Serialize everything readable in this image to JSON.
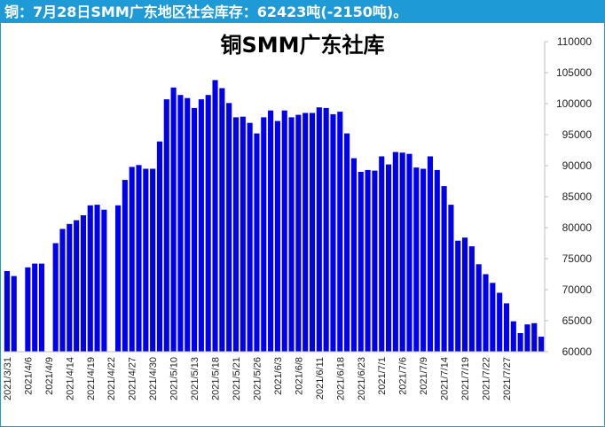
{
  "banner": {
    "text": "铜：7月28日SMM广东地区社会库存：62423吨(-2150吨)。"
  },
  "colors": {
    "banner": "#1e9bd7",
    "bar": "#0000ee"
  },
  "chart_data": {
    "type": "bar",
    "title": "铜SMM广东社库",
    "xlabel": "",
    "ylabel": "",
    "ylim": [
      60000,
      110000
    ],
    "yticks": [
      60000,
      65000,
      70000,
      75000,
      80000,
      85000,
      90000,
      95000,
      100000,
      105000,
      110000
    ],
    "grid": false,
    "legend": "none",
    "tick_labels": [
      "2021/3/31",
      "2021/4/6",
      "2021/4/9",
      "2021/4/14",
      "2021/4/19",
      "2021/4/22",
      "2021/4/27",
      "2021/4/30",
      "2021/5/10",
      "2021/5/13",
      "2021/5/18",
      "2021/5/21",
      "2021/5/26",
      "2021/6/3",
      "2021/6/8",
      "2021/6/11",
      "2021/6/18",
      "2021/6/23",
      "2021/7/1",
      "2021/7/6",
      "2021/7/9",
      "2021/7/14",
      "2021/7/19",
      "2021/7/22",
      "2021/7/27"
    ],
    "tick_label_slots": [
      0,
      3,
      6,
      9,
      12,
      15,
      18,
      21,
      24,
      27,
      30,
      33,
      36,
      39,
      42,
      45,
      48,
      51,
      54,
      57,
      60,
      63,
      66,
      69,
      72
    ],
    "values": [
      73000,
      72200,
      null,
      73600,
      74200,
      74200,
      null,
      77500,
      79800,
      80600,
      81200,
      82000,
      83600,
      83700,
      82900,
      null,
      83600,
      87700,
      89800,
      90100,
      89500,
      89500,
      93900,
      100700,
      102600,
      101400,
      100900,
      99300,
      100700,
      101400,
      103800,
      102500,
      100100,
      97800,
      97900,
      96900,
      95200,
      97800,
      98900,
      97200,
      98900,
      97800,
      98200,
      98500,
      98500,
      99400,
      99300,
      98300,
      98700,
      95200,
      91200,
      89000,
      89300,
      89200,
      91500,
      90200,
      92200,
      92100,
      91900,
      89700,
      89500,
      91500,
      89300,
      86700,
      83700,
      77900,
      78400,
      77000,
      74100,
      72500,
      71100,
      69500,
      67800,
      64900,
      63000,
      64400,
      64600,
      62423
    ]
  }
}
